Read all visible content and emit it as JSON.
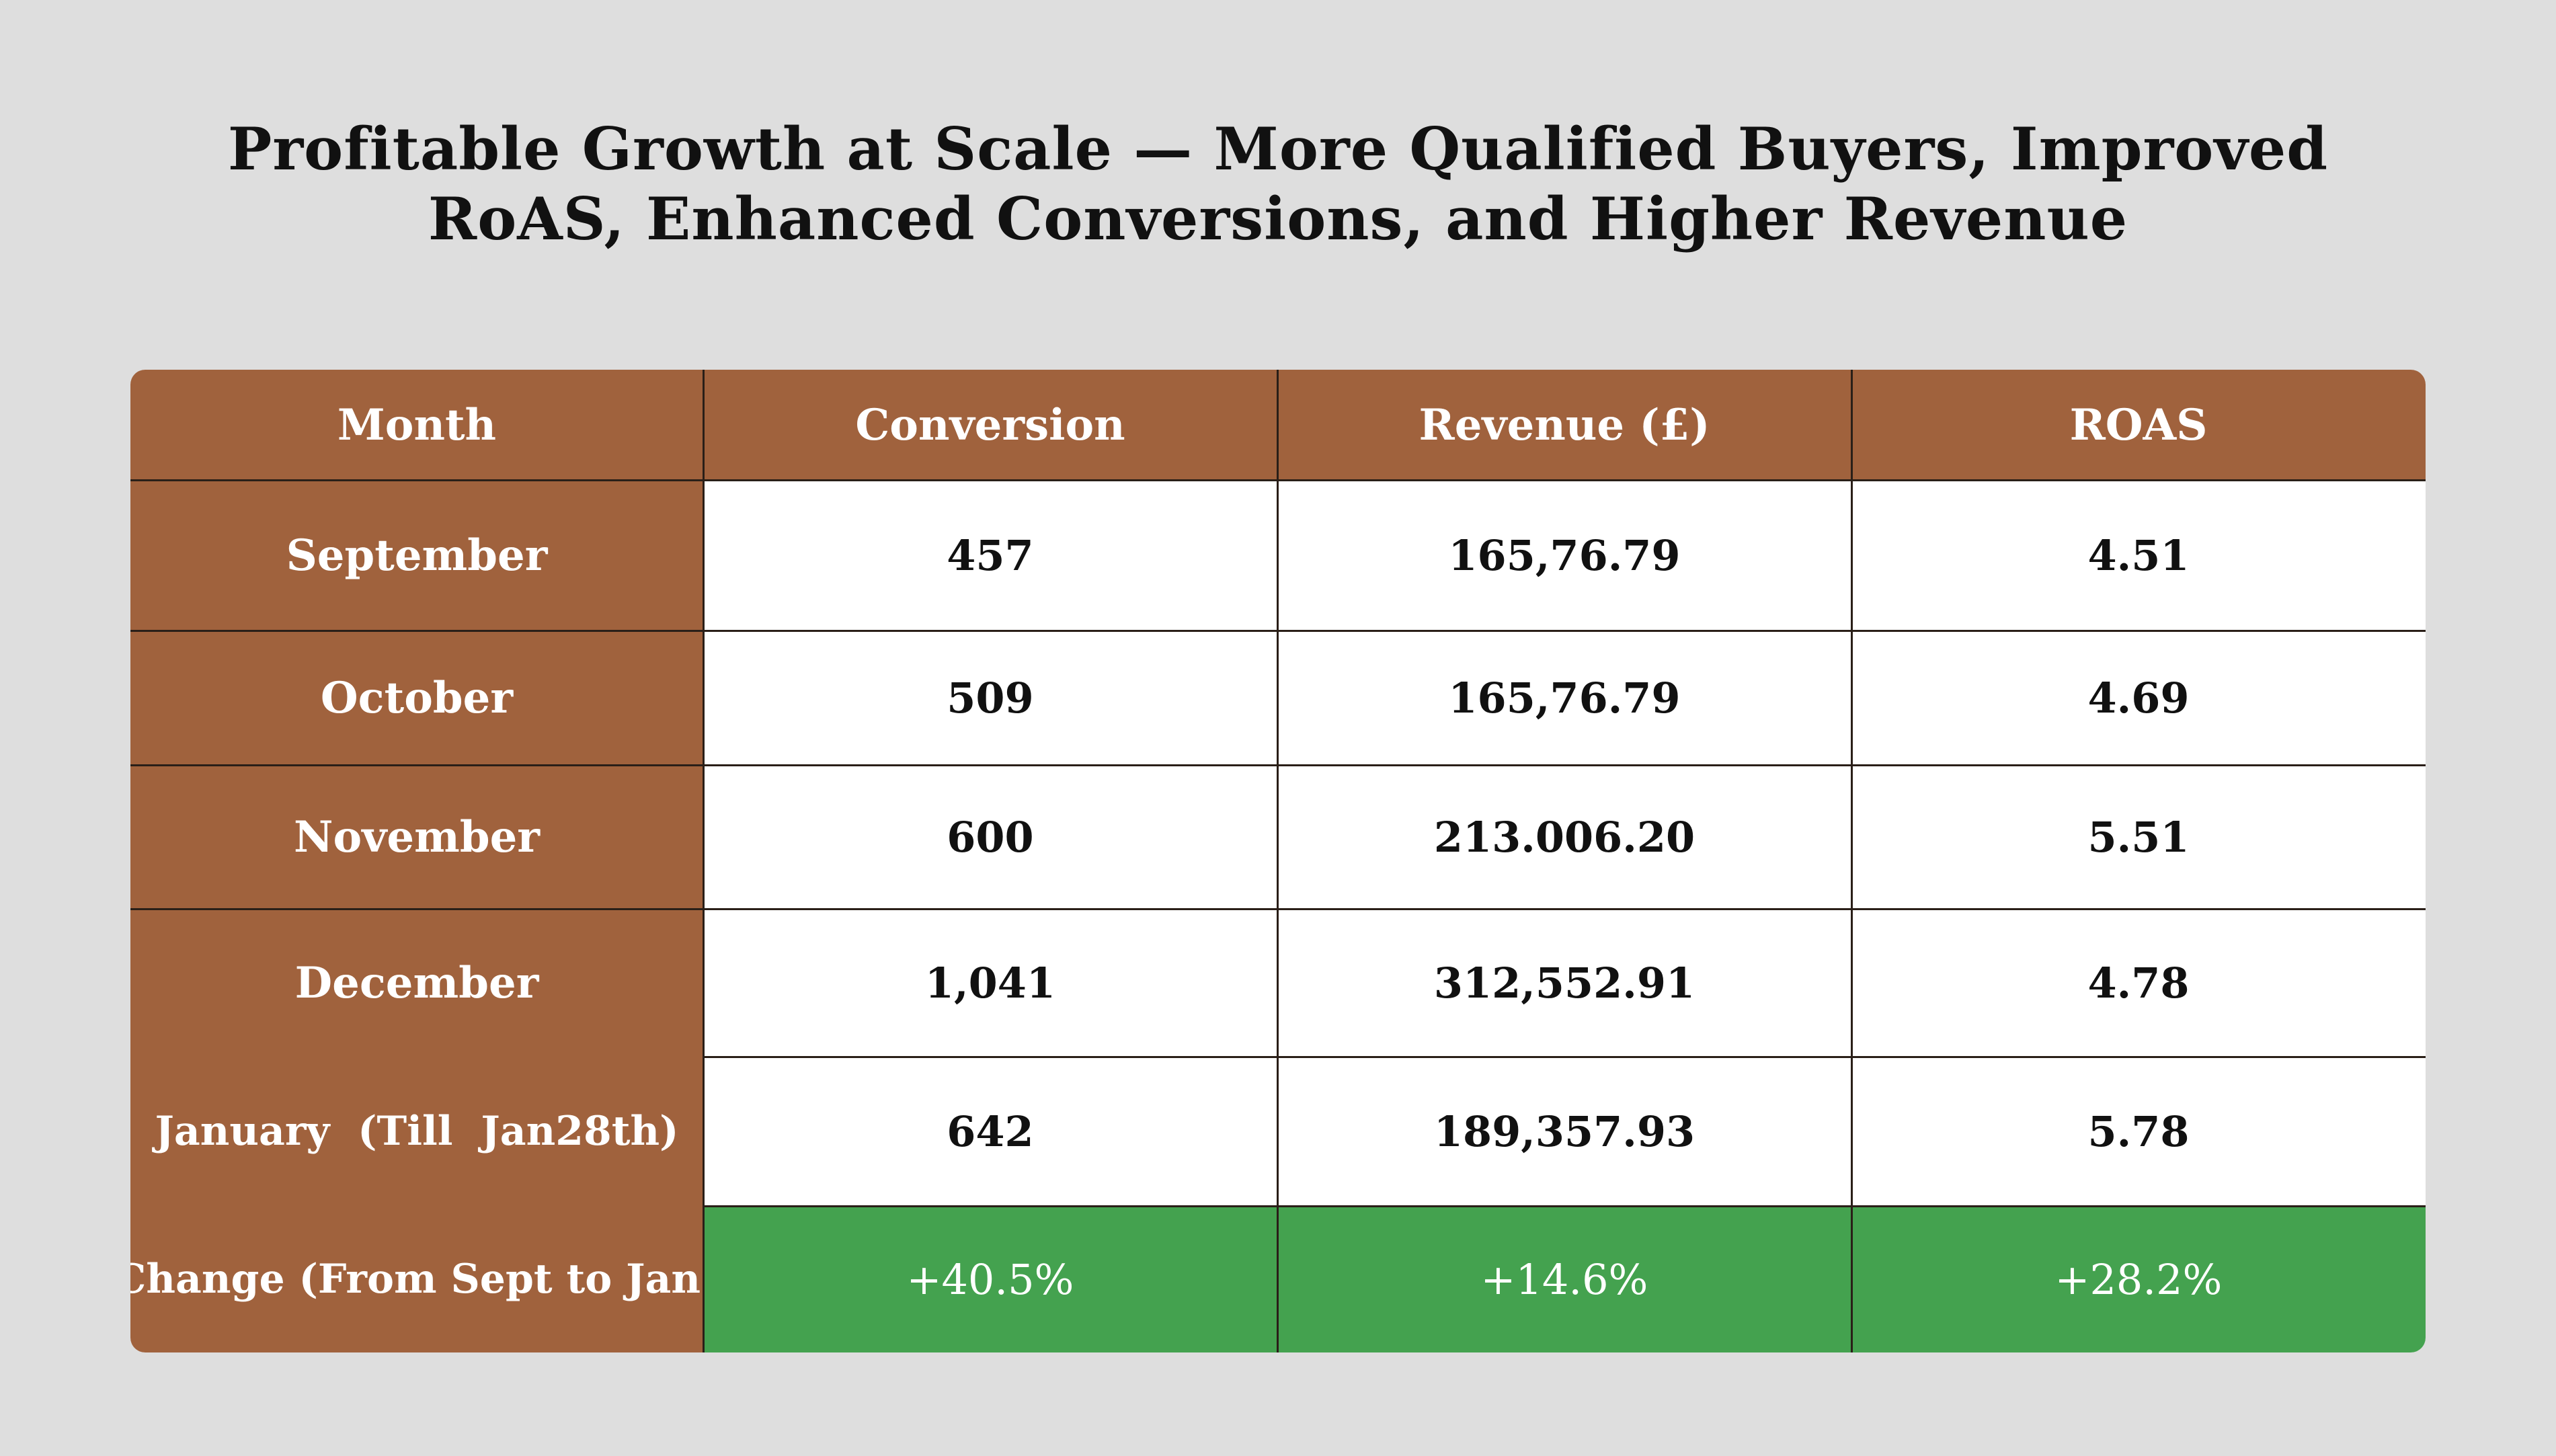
{
  "chart_data": {
    "type": "table",
    "title_lines": [
      "Profitable Growth at Scale — More Qualified Buyers, Improved",
      "RoAS, Enhanced Conversions, and Higher Revenue"
    ],
    "columns": [
      "Month",
      "Conversion",
      "Revenue (£)",
      "ROAS"
    ],
    "rows": [
      [
        "September",
        "457",
        "165,76.79",
        "4.51"
      ],
      [
        "October",
        "509",
        "165,76.79",
        "4.69"
      ],
      [
        "November",
        "600",
        "213.006.20",
        "5.51"
      ],
      [
        "December",
        "1,041",
        "312,552.91",
        "4.78"
      ],
      [
        "January  (Till  Jan28th)",
        "642",
        "189,357.93",
        "5.78"
      ]
    ],
    "change_row": [
      "Change (From Sept to Jan)",
      "+40.5%",
      "+14.6%",
      "+28.2%"
    ],
    "colors": {
      "background": "#dedede",
      "header": "#a0623d",
      "change_row": "#44a24f",
      "cell": "#ffffff"
    }
  }
}
